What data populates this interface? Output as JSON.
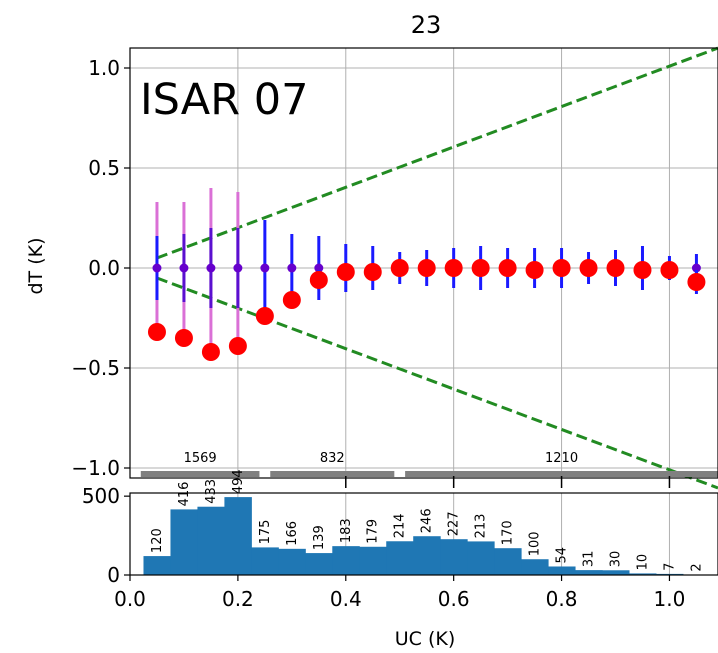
{
  "chart_data": [
    {
      "type": "scatter",
      "title": "23",
      "annotation": "ISAR 07",
      "xlabel": "",
      "ylabel": "dT (K)",
      "xlim": [
        0.0,
        1.09
      ],
      "ylim": [
        -1.05,
        1.1
      ],
      "xticks": [],
      "yticks": [
        "1.0",
        "0.5",
        "0.0",
        "−0.5",
        "−1.0"
      ],
      "grid": true,
      "series": [
        {
          "marker": "large circle",
          "color": "#ff0000",
          "x": [
            0.05,
            0.1,
            0.15,
            0.2,
            0.25,
            0.3,
            0.35,
            0.4,
            0.45,
            0.5,
            0.55,
            0.6,
            0.65,
            0.7,
            0.75,
            0.8,
            0.85,
            0.9,
            0.95,
            1.0,
            1.05
          ],
          "y": [
            -0.32,
            -0.35,
            -0.42,
            -0.39,
            -0.24,
            -0.16,
            -0.06,
            -0.02,
            -0.02,
            0.0,
            0.0,
            0.0,
            0.0,
            0.0,
            -0.01,
            0.0,
            0.0,
            0.0,
            -0.01,
            -0.01,
            -0.07
          ],
          "error": [
            0,
            0,
            0,
            0,
            0,
            0,
            0.05,
            0,
            0,
            0,
            0,
            0,
            0,
            0,
            0,
            0,
            0,
            0,
            0,
            0,
            0.06
          ]
        },
        {
          "marker": "small dot with error bar",
          "color": "#6600cc",
          "x": [
            0.05,
            0.1,
            0.15,
            0.2,
            0.25,
            0.3,
            0.35,
            0.4,
            0.45,
            0.5,
            0.55,
            0.6,
            0.65,
            0.7,
            0.75,
            0.8,
            0.85,
            0.9,
            0.95,
            1.0,
            1.05
          ],
          "y": [
            0,
            0,
            0,
            0,
            0,
            0,
            0,
            0,
            0,
            0,
            0,
            0,
            0,
            0,
            0,
            0,
            0,
            0,
            0,
            0,
            0
          ],
          "outer_error": [
            0.33,
            0.33,
            0.4,
            0.38,
            0,
            0,
            0,
            0,
            0,
            0,
            0,
            0,
            0,
            0,
            0,
            0,
            0,
            0,
            0,
            0,
            0
          ],
          "inner_error": [
            0.16,
            0.17,
            0.2,
            0.2,
            0.24,
            0.17,
            0.16,
            0.12,
            0.11,
            0.08,
            0.09,
            0.1,
            0.11,
            0.1,
            0.1,
            0.1,
            0.08,
            0.09,
            0.11,
            0.06,
            0.07
          ]
        }
      ],
      "reference_lines": [
        {
          "style": "dashed",
          "color": "#228b22",
          "x": [
            0.05,
            1.09
          ],
          "y": [
            0.05,
            1.1
          ]
        },
        {
          "style": "dashed",
          "color": "#228b22",
          "x": [
            0.05,
            1.09
          ],
          "y": [
            -0.05,
            -1.1
          ]
        }
      ],
      "group_labels": [
        {
          "label": "1569",
          "x_range": [
            0.02,
            0.24
          ]
        },
        {
          "label": "832",
          "x_range": [
            0.26,
            0.49
          ]
        },
        {
          "label": "1210",
          "x_range": [
            0.51,
            1.09
          ]
        }
      ]
    },
    {
      "type": "bar",
      "xlabel": "UC (K)",
      "ylabel": "",
      "xlim": [
        0.0,
        1.09
      ],
      "ylim": [
        0,
        520
      ],
      "xticks": [
        "0.0",
        "0.2",
        "0.4",
        "0.6",
        "0.8",
        "1.0"
      ],
      "yticks": [
        "500",
        "0"
      ],
      "color": "#1f77b4",
      "x": [
        0.05,
        0.1,
        0.15,
        0.2,
        0.25,
        0.3,
        0.35,
        0.4,
        0.45,
        0.5,
        0.55,
        0.6,
        0.65,
        0.7,
        0.75,
        0.8,
        0.85,
        0.9,
        0.95,
        1.0,
        1.05
      ],
      "values": [
        120,
        416,
        433,
        494,
        175,
        166,
        139,
        183,
        179,
        214,
        246,
        227,
        213,
        170,
        100,
        54,
        31,
        30,
        10,
        7,
        2
      ],
      "labels": [
        "120",
        "416",
        "433",
        "494",
        "175",
        "166",
        "139",
        "183",
        "179",
        "214",
        "246",
        "227",
        "213",
        "170",
        "100",
        "54",
        "31",
        "30",
        "10",
        "7",
        "2"
      ]
    }
  ]
}
